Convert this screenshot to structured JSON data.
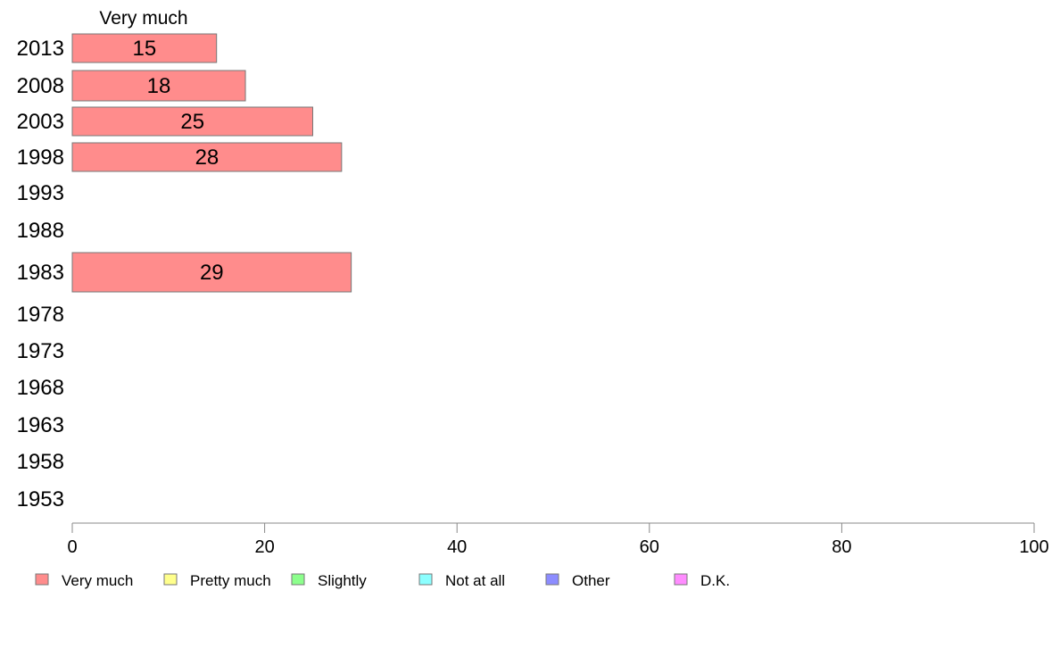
{
  "chart_data": {
    "type": "bar",
    "orientation": "horizontal",
    "series_header": "Very much",
    "categories": [
      "2013",
      "2008",
      "2003",
      "1998",
      "1993",
      "1988",
      "1983",
      "1978",
      "1973",
      "1968",
      "1963",
      "1958",
      "1953"
    ],
    "series": [
      {
        "name": "Very much",
        "values": [
          15,
          18,
          25,
          28,
          null,
          null,
          29,
          null,
          null,
          null,
          null,
          null,
          null
        ]
      }
    ],
    "value_labels": [
      "15",
      "18",
      "25",
      "28",
      "",
      "",
      "29",
      "",
      "",
      "",
      "",
      "",
      ""
    ],
    "xlim": [
      0,
      100
    ],
    "xticks": [
      "0",
      "20",
      "40",
      "60",
      "80",
      "100"
    ],
    "legend": {
      "placement": "bottom",
      "entries": [
        {
          "label": "Very much",
          "color": "#ff8c8c"
        },
        {
          "label": "Pretty much",
          "color": "#ffff8c"
        },
        {
          "label": "Slightly",
          "color": "#8cff8c"
        },
        {
          "label": "Not at all",
          "color": "#8cffff"
        },
        {
          "label": "Other",
          "color": "#8c8cff"
        },
        {
          "label": "D.K.",
          "color": "#ff8cff"
        }
      ]
    },
    "grid": false
  }
}
